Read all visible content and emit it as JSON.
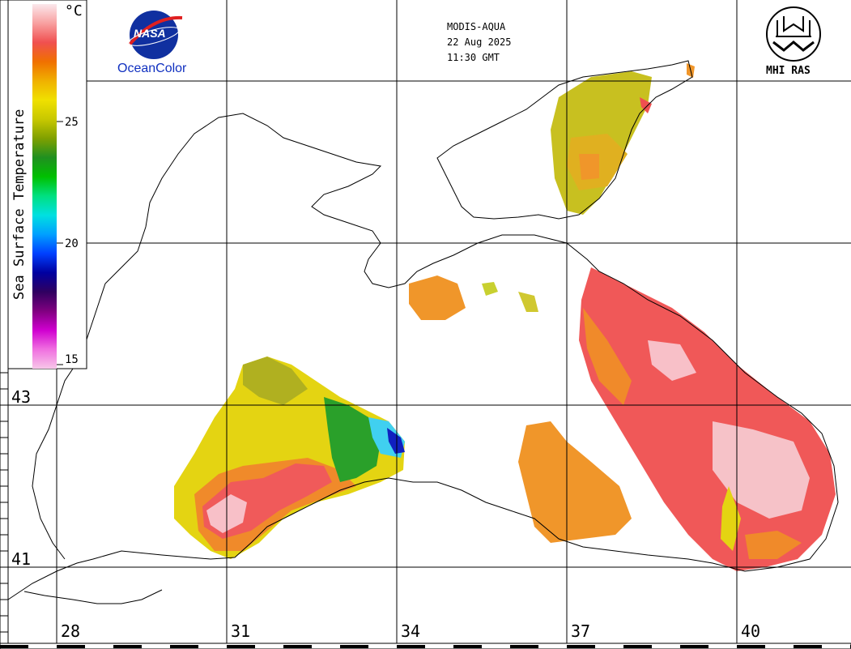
{
  "header": {
    "sensor": "MODIS-AQUA",
    "date": "22 Aug 2025",
    "time": "11:30 GMT"
  },
  "logos": {
    "nasa_text": "NASA",
    "nasa_caption": "OceanColor",
    "institute": "MHI RAS"
  },
  "colorbar": {
    "title": "Sea Surface Temperature",
    "unit": "°C",
    "ticks": [
      "25",
      "20",
      "15"
    ],
    "colors": [
      "#f7c6e8",
      "#f070e0",
      "#d000d0",
      "#800080",
      "#300060",
      "#0000a0",
      "#0040ff",
      "#00a0ff",
      "#00e0e0",
      "#00e080",
      "#00c000",
      "#209020",
      "#80a000",
      "#c8c800",
      "#f0e000",
      "#f0b000",
      "#f07000",
      "#f05050",
      "#f8a0a0",
      "#fbe8ec"
    ]
  },
  "map": {
    "longitudes": [
      "28",
      "31",
      "34",
      "37",
      "40"
    ],
    "latitudes": [
      "43",
      "41"
    ],
    "colors": {
      "warm_red": "#f05050",
      "hot_white": "#fbe8ec",
      "orange": "#f08020",
      "yellow": "#e0d000",
      "olive": "#b0b020",
      "green": "#20a020",
      "cyan": "#40d0f0",
      "blue": "#1020c0"
    }
  }
}
